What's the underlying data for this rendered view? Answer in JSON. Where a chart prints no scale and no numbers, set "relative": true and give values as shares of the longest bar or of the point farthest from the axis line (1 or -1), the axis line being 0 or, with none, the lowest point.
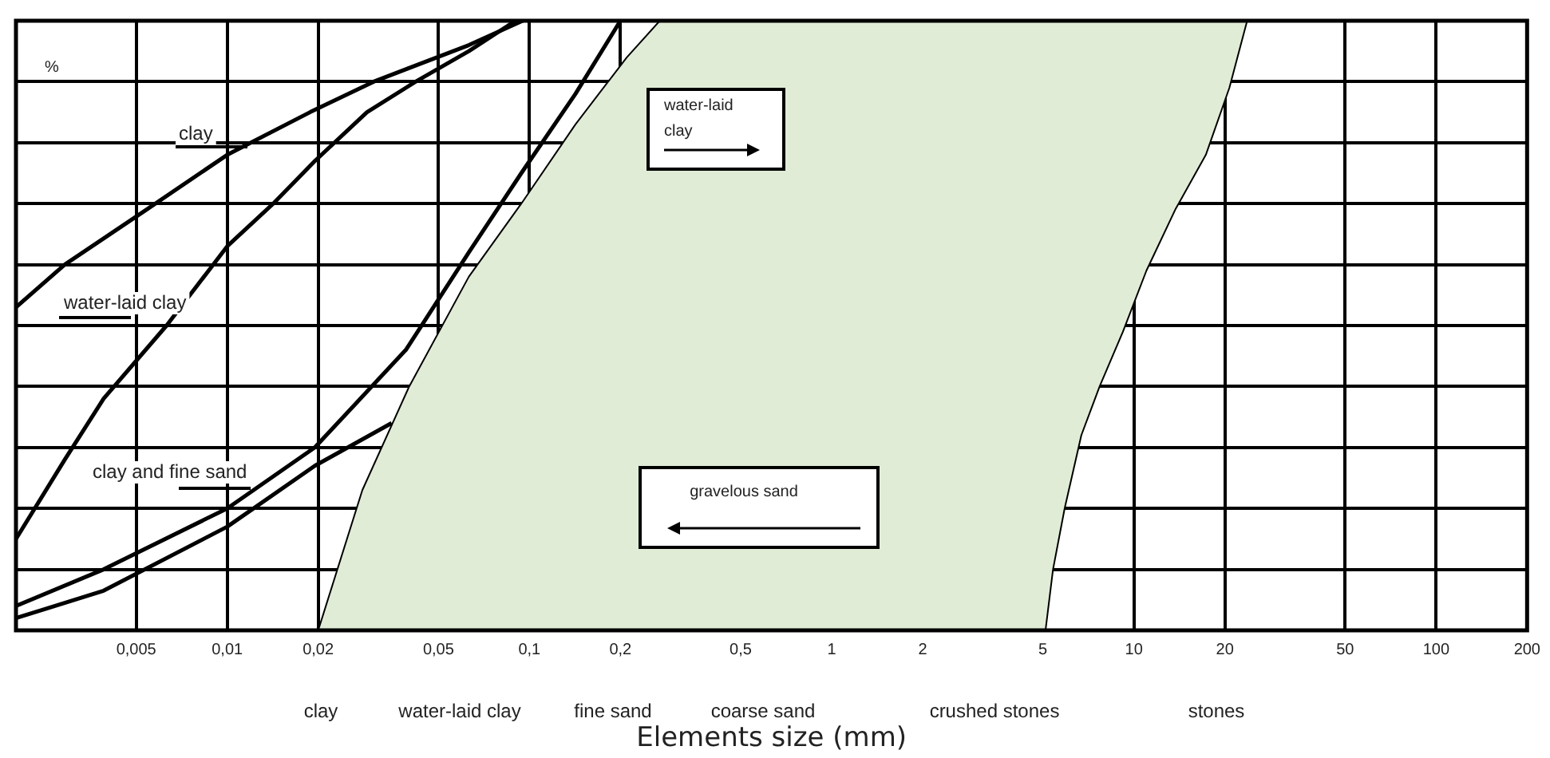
{
  "chart_data": {
    "type": "line",
    "xlabel": "Elements size (mm)",
    "ylabel": "%",
    "log": "x",
    "relative": true,
    "grid": true,
    "legend": false,
    "marker": "none",
    "line_style": "solid",
    "xlim": [
      0.002,
      200
    ],
    "xticks": [
      {
        "value": 0.005,
        "label": "0,005"
      },
      {
        "value": 0.01,
        "label": "0,01"
      },
      {
        "value": 0.02,
        "label": "0,02"
      },
      {
        "value": 0.05,
        "label": "0,05"
      },
      {
        "value": 0.1,
        "label": "0,1"
      },
      {
        "value": 0.2,
        "label": "0,2"
      },
      {
        "value": 0.5,
        "label": "0,5"
      },
      1,
      2,
      5,
      10,
      20,
      50,
      100,
      200
    ],
    "series": [
      {
        "type": "area",
        "color": "#e0ecd6",
        "x": [
          0.02,
          0.028,
          0.04,
          0.063,
          0.094,
          0.142,
          0.21,
          0.27,
          23.7,
          20.7,
          17.3,
          13.7,
          11,
          9.2,
          7.7,
          6.7,
          5.9,
          5.4,
          5.1
        ],
        "values": [
          0,
          0.23,
          0.4,
          0.58,
          0.7,
          0.83,
          0.94,
          1,
          1,
          0.89,
          0.78,
          0.69,
          0.59,
          0.49,
          0.4,
          0.32,
          0.2,
          0.1,
          0
        ]
      },
      {
        "name": "clay",
        "color": "#000000",
        "x": [
          0.002,
          0.0029,
          0.0054,
          0.01,
          0.0188,
          0.0305,
          0.063,
          0.095
        ],
        "values": [
          0.53,
          0.6,
          0.69,
          0.78,
          0.85,
          0.9,
          0.96,
          1
        ]
      },
      {
        "name": "water-laid clay",
        "color": "#000000",
        "x": [
          0.002,
          0.0029,
          0.0039,
          0.0063,
          0.01,
          0.0142,
          0.0195,
          0.029,
          0.042,
          0.063,
          0.09
        ],
        "values": [
          0.15,
          0.28,
          0.38,
          0.5,
          0.63,
          0.7,
          0.77,
          0.85,
          0.9,
          0.95,
          1
        ]
      },
      {
        "name": "clay and fine sand",
        "color": "#000000",
        "x": [
          0.002,
          0.0039,
          0.01,
          0.0195,
          0.039,
          0.063,
          0.094,
          0.142,
          0.2
        ],
        "values": [
          0.04,
          0.1,
          0.2,
          0.3,
          0.46,
          0.62,
          0.75,
          0.88,
          1
        ]
      },
      {
        "color": "#000000",
        "x": [
          0.002,
          0.0039,
          0.01,
          0.0195,
          0.035
        ],
        "values": [
          0.02,
          0.065,
          0.17,
          0.27,
          0.34
        ]
      }
    ],
    "annotations": [
      "water-laid\nclay",
      "gravelous sand",
      "clay",
      "water-laid clay",
      "fine sand",
      "coarse sand",
      "crushed stones",
      "stones"
    ]
  }
}
